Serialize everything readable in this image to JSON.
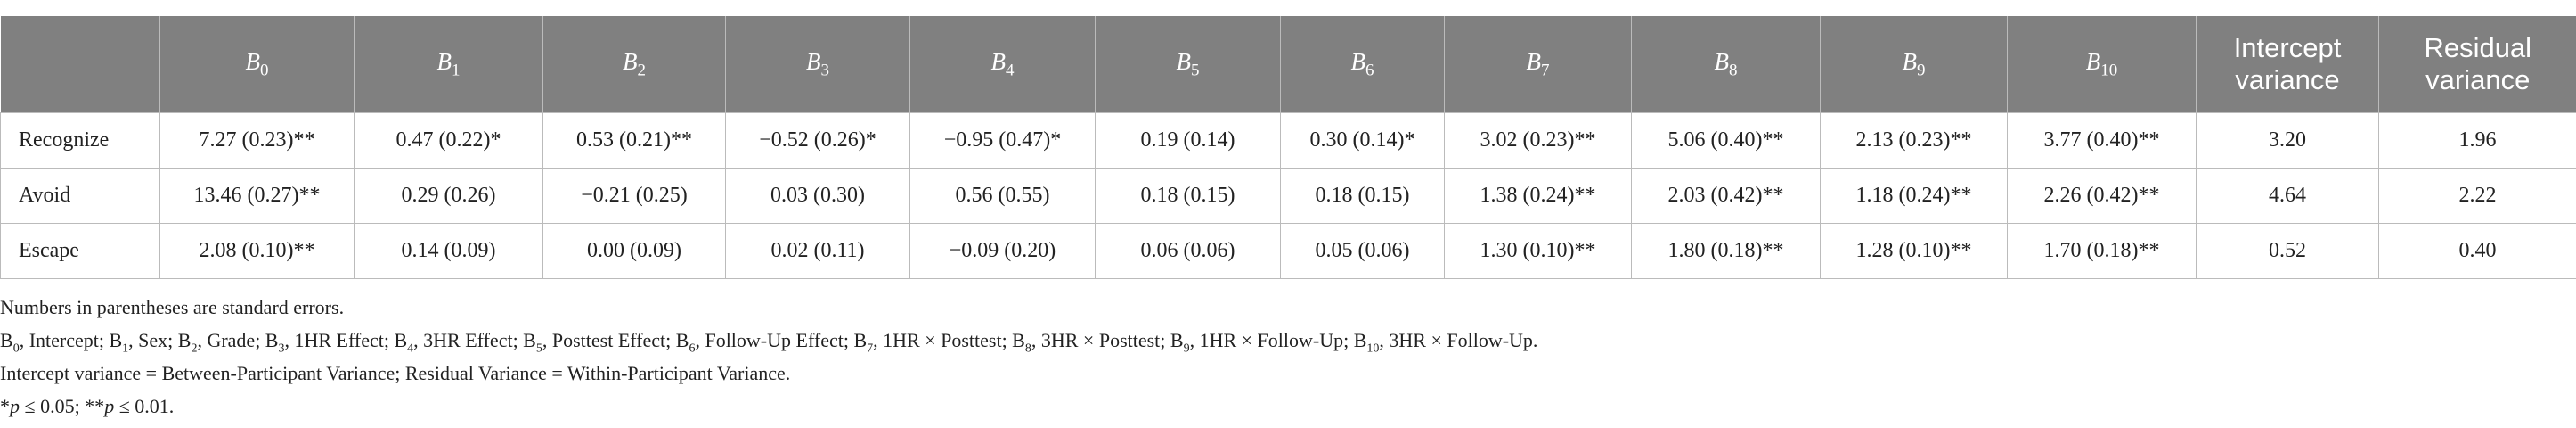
{
  "table": {
    "columns": [
      {
        "base": "B",
        "sub": "0"
      },
      {
        "base": "B",
        "sub": "1"
      },
      {
        "base": "B",
        "sub": "2"
      },
      {
        "base": "B",
        "sub": "3"
      },
      {
        "base": "B",
        "sub": "4"
      },
      {
        "base": "B",
        "sub": "5"
      },
      {
        "base": "B",
        "sub": "6"
      },
      {
        "base": "B",
        "sub": "7"
      },
      {
        "base": "B",
        "sub": "8"
      },
      {
        "base": "B",
        "sub": "9"
      },
      {
        "base": "B",
        "sub": "10"
      },
      {
        "text": "Intercept variance"
      },
      {
        "text": "Residual variance"
      }
    ],
    "rows": [
      {
        "label": "Recognize",
        "cells": [
          "7.27 (0.23)**",
          "0.47 (0.22)*",
          "0.53 (0.21)**",
          "−0.52 (0.26)*",
          "−0.95 (0.47)*",
          "0.19 (0.14)",
          "0.30 (0.14)*",
          "3.02 (0.23)**",
          "5.06 (0.40)**",
          "2.13 (0.23)**",
          "3.77 (0.40)**",
          "3.20",
          "1.96"
        ]
      },
      {
        "label": "Avoid",
        "cells": [
          "13.46 (0.27)**",
          "0.29 (0.26)",
          "−0.21 (0.25)",
          "0.03 (0.30)",
          "0.56 (0.55)",
          "0.18 (0.15)",
          "0.18 (0.15)",
          "1.38 (0.24)**",
          "2.03 (0.42)**",
          "1.18 (0.24)**",
          "2.26 (0.42)**",
          "4.64",
          "2.22"
        ]
      },
      {
        "label": "Escape",
        "cells": [
          "2.08 (0.10)**",
          "0.14 (0.09)",
          "0.00 (0.09)",
          "0.02 (0.11)",
          "−0.09 (0.20)",
          "0.06 (0.06)",
          "0.05 (0.06)",
          "1.30 (0.10)**",
          "1.80 (0.18)**",
          "1.28 (0.10)**",
          "1.70 (0.18)**",
          "0.52",
          "0.40"
        ]
      }
    ]
  },
  "notes": [
    [
      {
        "text": "Numbers in parentheses are standard errors."
      }
    ],
    [
      {
        "text": "B"
      },
      {
        "sub": "0"
      },
      {
        "text": ", Intercept; B"
      },
      {
        "sub": "1"
      },
      {
        "text": ", Sex; B"
      },
      {
        "sub": "2"
      },
      {
        "text": ", Grade; B"
      },
      {
        "sub": "3"
      },
      {
        "text": ", 1HR Effect; B"
      },
      {
        "sub": "4"
      },
      {
        "text": ", 3HR Effect; B"
      },
      {
        "sub": "5"
      },
      {
        "text": ", Posttest Effect; B"
      },
      {
        "sub": "6"
      },
      {
        "text": ", Follow-Up Effect; B"
      },
      {
        "sub": "7"
      },
      {
        "text": ", 1HR × Posttest; B"
      },
      {
        "sub": "8"
      },
      {
        "text": ", 3HR × Posttest; B"
      },
      {
        "sub": "9"
      },
      {
        "text": ", 1HR × Follow-Up; B"
      },
      {
        "sub": "10"
      },
      {
        "text": ", 3HR × Follow-Up."
      }
    ],
    [
      {
        "text": "Intercept variance = Between-Participant Variance; Residual Variance = Within-Participant Variance."
      }
    ],
    [
      {
        "text": "*"
      },
      {
        "italic": "p"
      },
      {
        "text": " ≤ 0.05; **"
      },
      {
        "italic": "p"
      },
      {
        "text": " ≤ 0.01."
      }
    ]
  ]
}
